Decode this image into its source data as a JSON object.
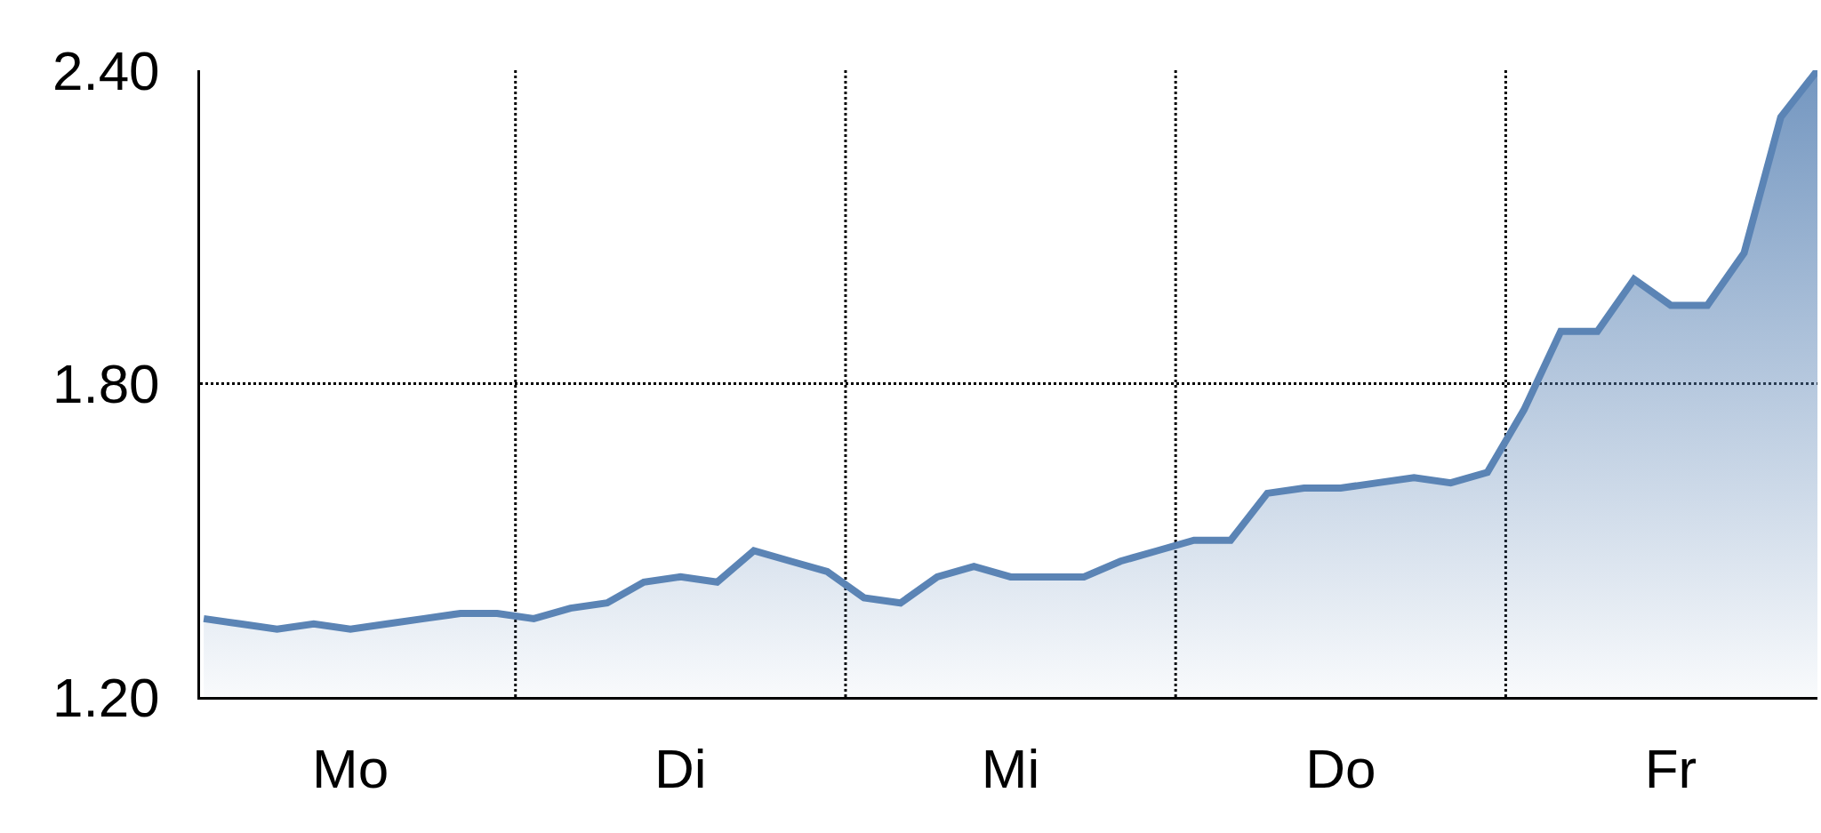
{
  "chart_data": {
    "type": "area",
    "categories": [
      null,
      null,
      null,
      null,
      "Mo",
      null,
      null,
      null,
      null,
      null,
      null,
      null,
      null,
      "Di",
      null,
      null,
      null,
      null,
      null,
      null,
      null,
      null,
      "Mi",
      null,
      null,
      null,
      null,
      null,
      null,
      null,
      null,
      "Do",
      null,
      null,
      null,
      null,
      null,
      null,
      null,
      null,
      "Fr",
      null,
      null,
      null,
      null
    ],
    "series": [
      {
        "color": "#5b84b5",
        "values": [
          1.35,
          1.34,
          1.33,
          1.34,
          1.33,
          1.34,
          1.35,
          1.36,
          1.36,
          1.35,
          1.37,
          1.38,
          1.42,
          1.43,
          1.42,
          1.48,
          1.46,
          1.44,
          1.39,
          1.38,
          1.43,
          1.45,
          1.43,
          1.43,
          1.43,
          1.46,
          1.48,
          1.5,
          1.5,
          1.59,
          1.6,
          1.6,
          1.61,
          1.62,
          1.61,
          1.63,
          1.75,
          1.9,
          1.9,
          2.0,
          1.95,
          1.95,
          2.05,
          2.31,
          2.4
        ]
      }
    ],
    "ylim": [
      1.2,
      2.4
    ],
    "yticks": [
      {
        "value": 1.2,
        "label": "1.20"
      },
      {
        "value": 1.8,
        "label": "1.80"
      },
      {
        "value": 2.4,
        "label": "2.40"
      }
    ],
    "ref_lines": [
      {
        "axis": "y",
        "value": 1.8,
        "color": "#000000",
        "line_style": "dotted"
      }
    ],
    "grid": false,
    "marker": "none",
    "line_style": "solid"
  }
}
